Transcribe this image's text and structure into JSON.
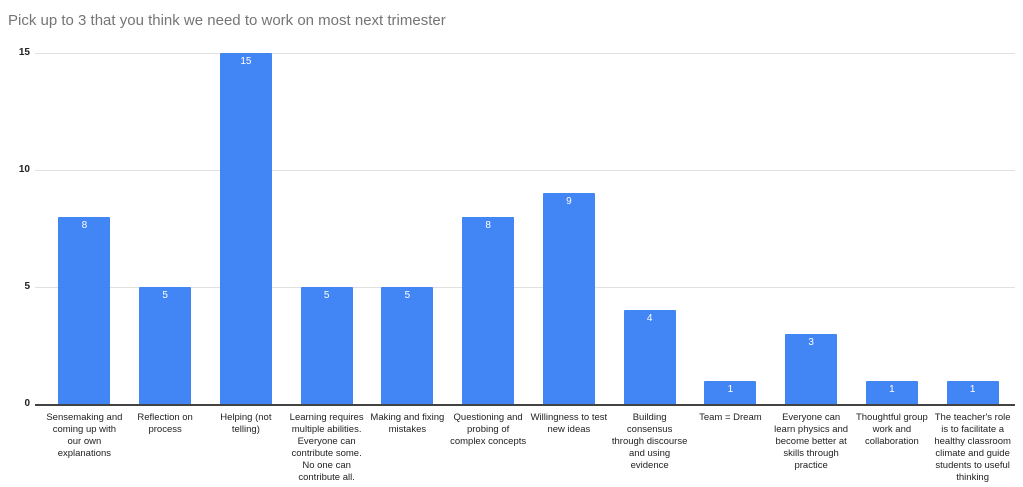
{
  "chart_data": {
    "type": "bar",
    "title": "Pick up to 3 that you think we need to work on most next trimester",
    "categories": [
      "Sensemaking and coming up with our own explanations",
      "Reflection on process",
      "Helping (not telling)",
      "Learning requires multiple abilities. Everyone can contribute some. No one can contribute all.",
      "Making and fixing mistakes",
      "Questioning and probing of complex concepts",
      "Willingness to test new ideas",
      "Building consensus through discourse and using evidence",
      "Team = Dream",
      "Everyone can learn physics and become better at skills through practice",
      "Thoughtful group work and collaboration",
      "The teacher's role is to facilitate a healthy classroom climate and guide students to useful thinking"
    ],
    "values": [
      8,
      5,
      15,
      5,
      5,
      8,
      9,
      4,
      1,
      3,
      1,
      1
    ],
    "xlabel": "",
    "ylabel": "",
    "ylim": [
      0,
      15
    ],
    "yticks": [
      0,
      5,
      10,
      15
    ],
    "grid": true,
    "legend": "none"
  },
  "colors": {
    "background": "#ffffff",
    "bar": "#4285f4",
    "bar_value_text": "#ffffff",
    "title_text": "#757575",
    "axis_text": "#222222",
    "gridline": "#e0e0e0",
    "baseline": "#424242"
  }
}
